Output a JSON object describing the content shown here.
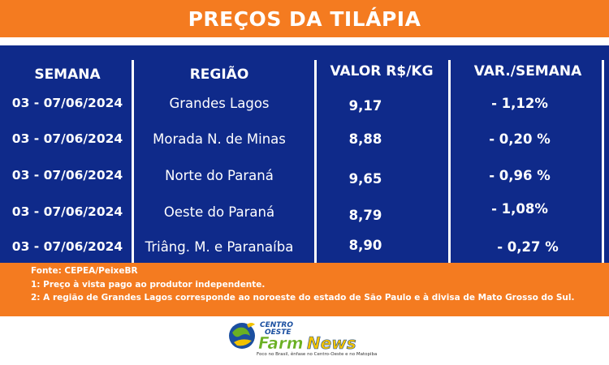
{
  "header": {
    "title": "PREÇOS DA TILÁPIA"
  },
  "table": {
    "columns": [
      "SEMANA",
      "REGIÃO",
      "VALOR R$/KG",
      "VAR./SEMANA"
    ],
    "rows": [
      {
        "week": "03 - 07/06/2024",
        "region": "Grandes Lagos",
        "value": "9,17",
        "variation": "-  1,12%"
      },
      {
        "week": "03 - 07/06/2024",
        "region": "Morada N. de Minas",
        "value": "8,88",
        "variation": "-  0,20 %"
      },
      {
        "week": "03 - 07/06/2024",
        "region": "Norte do Paraná",
        "value": "9,65",
        "variation": "-  0,96 %"
      },
      {
        "week": "03 - 07/06/2024",
        "region": "Oeste do Paraná",
        "value": "8,79",
        "variation": "- 1,08%"
      },
      {
        "week": "03 - 07/06/2024",
        "region": "Triâng.  M. e  Paranaíba",
        "value": "8,90",
        "variation": "- 0,27 %"
      }
    ]
  },
  "notes": [
    "Fonte: CEPEA/PeixeBR",
    "1: Preço à vista pago ao produtor independente.",
    "2: A região de Grandes Lagos corresponde ao noroeste do estado de São Paulo e à divisa de Mato Grosso do Sul."
  ],
  "logo": {
    "line1": "CENTRO",
    "line2": "OESTE",
    "brand_a": "Farm",
    "brand_b": "News",
    "tagline": "Foco no Brasil, ênfase no Centro-Oeste e no Matopiba",
    "icon": "globe-bird-icon"
  },
  "colors": {
    "orange": "#f47b20",
    "navy": "#0f2a8a",
    "white": "#ffffff",
    "logo_green": "#6ab023",
    "logo_yellow": "#f2c200",
    "logo_blue": "#1b4fa0"
  }
}
